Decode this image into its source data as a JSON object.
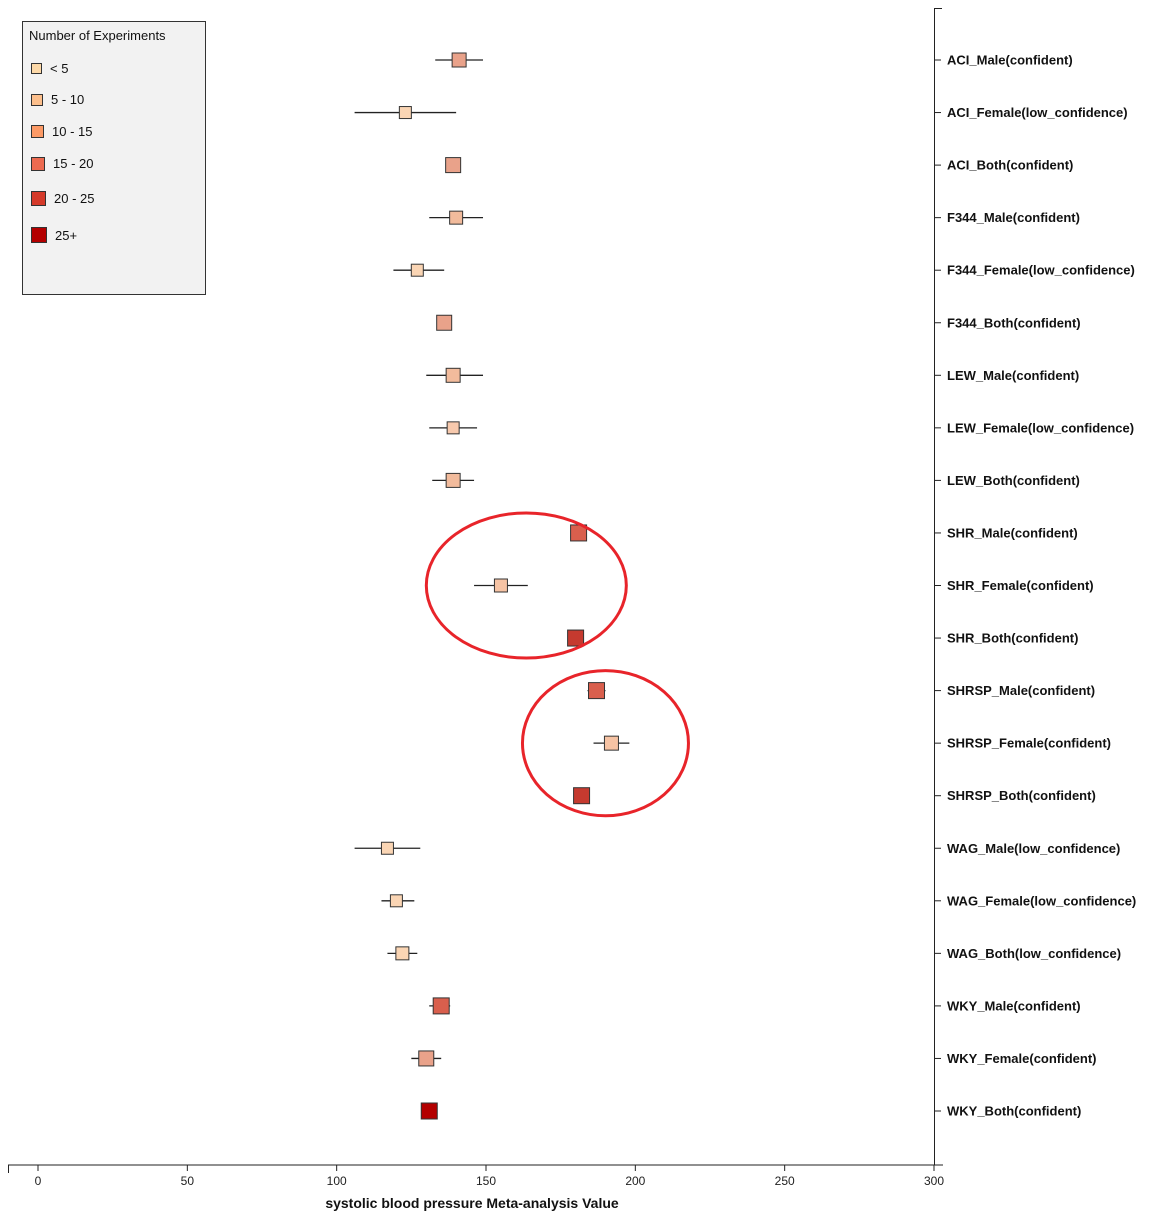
{
  "chart_data": {
    "type": "scatter",
    "subtype": "forest-plot",
    "xlabel": "systolic blood pressure Meta-analysis Value",
    "xlim": [
      0,
      300
    ],
    "xticks": [
      0,
      50,
      100,
      150,
      200,
      250,
      300
    ],
    "grid": false,
    "legend_position": "top-left",
    "legend": {
      "title": "Number of Experiments",
      "entries": [
        {
          "label": "< 5",
          "color": "#fdd9a8"
        },
        {
          "label": "5 - 10",
          "color": "#fcbf8c"
        },
        {
          "label": "10 - 15",
          "color": "#fc9a66"
        },
        {
          "label": "15 - 20",
          "color": "#ec6a50"
        },
        {
          "label": "20 - 25",
          "color": "#d53a2a"
        },
        {
          "label": "25+",
          "color": "#b30000"
        }
      ]
    },
    "categories": [
      "ACI_Male(confident)",
      "ACI_Female(low_confidence)",
      "ACI_Both(confident)",
      "F344_Male(confident)",
      "F344_Female(low_confidence)",
      "F344_Both(confident)",
      "LEW_Male(confident)",
      "LEW_Female(low_confidence)",
      "LEW_Both(confident)",
      "SHR_Male(confident)",
      "SHR_Female(confident)",
      "SHR_Both(confident)",
      "SHRSP_Male(confident)",
      "SHRSP_Female(confident)",
      "SHRSP_Both(confident)",
      "WAG_Male(low_confidence)",
      "WAG_Female(low_confidence)",
      "WAG_Both(low_confidence)",
      "WKY_Male(confident)",
      "WKY_Female(confident)",
      "WKY_Both(confident)"
    ],
    "points": [
      {
        "value": 141,
        "low": 133,
        "high": 149,
        "color": "#e9a28a",
        "size": 14
      },
      {
        "value": 123,
        "low": 106,
        "high": 140,
        "color": "#fad5b4",
        "size": 12
      },
      {
        "value": 139,
        "low": 139,
        "high": 139,
        "color": "#e9a28a",
        "size": 15
      },
      {
        "value": 140,
        "low": 131,
        "high": 149,
        "color": "#f2bb9c",
        "size": 13
      },
      {
        "value": 127,
        "low": 119,
        "high": 136,
        "color": "#fad5b4",
        "size": 12
      },
      {
        "value": 136,
        "low": 136,
        "high": 136,
        "color": "#e9a28a",
        "size": 15
      },
      {
        "value": 139,
        "low": 130,
        "high": 149,
        "color": "#f2bb9c",
        "size": 14
      },
      {
        "value": 139,
        "low": 131,
        "high": 147,
        "color": "#f7c9ad",
        "size": 12
      },
      {
        "value": 139,
        "low": 132,
        "high": 146,
        "color": "#f2bb9c",
        "size": 14
      },
      {
        "value": 181,
        "low": 181,
        "high": 181,
        "color": "#d95f4d",
        "size": 16
      },
      {
        "value": 155,
        "low": 146,
        "high": 164,
        "color": "#f6c3a4",
        "size": 13
      },
      {
        "value": 180,
        "low": 180,
        "high": 180,
        "color": "#c53a2f",
        "size": 16
      },
      {
        "value": 187,
        "low": 184,
        "high": 190,
        "color": "#d95f4d",
        "size": 16
      },
      {
        "value": 192,
        "low": 186,
        "high": 198,
        "color": "#f6c3a4",
        "size": 14
      },
      {
        "value": 182,
        "low": 182,
        "high": 182,
        "color": "#c53a2f",
        "size": 16
      },
      {
        "value": 117,
        "low": 106,
        "high": 128,
        "color": "#fad5b4",
        "size": 12
      },
      {
        "value": 120,
        "low": 115,
        "high": 126,
        "color": "#fad5b4",
        "size": 12
      },
      {
        "value": 122,
        "low": 117,
        "high": 127,
        "color": "#fad5b4",
        "size": 13
      },
      {
        "value": 135,
        "low": 131,
        "high": 138,
        "color": "#d95f4d",
        "size": 16
      },
      {
        "value": 130,
        "low": 125,
        "high": 135,
        "color": "#e9a28a",
        "size": 15
      },
      {
        "value": 131,
        "low": 131,
        "high": 131,
        "color": "#b30000",
        "size": 16
      }
    ],
    "annotations": [
      {
        "type": "ellipse",
        "color": "#e8242a",
        "encloses": [
          "SHR_Male(confident)",
          "SHR_Female(confident)",
          "SHR_Both(confident)"
        ]
      },
      {
        "type": "ellipse",
        "color": "#e8242a",
        "encloses": [
          "SHRSP_Male(confident)",
          "SHRSP_Female(confident)",
          "SHRSP_Both(confident)"
        ]
      }
    ]
  }
}
